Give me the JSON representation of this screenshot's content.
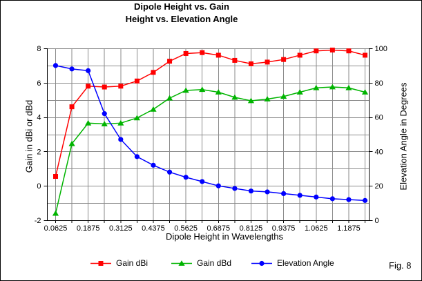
{
  "chart": {
    "title_line1": "Dipole Height vs. Gain",
    "title_line2": "Height vs. Elevation Angle",
    "x_axis_title": "Dipole Height in Wavelengths",
    "y_left_title": "Gain in dBi or dBd",
    "y_right_title": "Elevation Angle in Degrees",
    "fig_label": "Fig. 8"
  },
  "chart_data": {
    "type": "line",
    "title": "Dipole Height vs. Gain / Height vs. Elevation Angle",
    "xlabel": "Dipole Height in Wavelengths",
    "ylabel_left": "Gain in dBi or dBd",
    "ylabel_right": "Elevation Angle in Degrees",
    "grid": true,
    "grid_color": "#8a8a8a",
    "axis_color": "#000000",
    "legend_position": "bottom",
    "x": [
      0.0625,
      0.125,
      0.1875,
      0.25,
      0.3125,
      0.375,
      0.4375,
      0.5,
      0.5625,
      0.625,
      0.6875,
      0.75,
      0.8125,
      0.875,
      0.9375,
      1.0,
      1.0625,
      1.125,
      1.1875,
      1.25
    ],
    "x_tick_labels": [
      "0.0625",
      "0.1875",
      "0.3125",
      "0.4375",
      "0.5625",
      "0.6875",
      "0.8125",
      "0.9375",
      "1.0625",
      "1.1875"
    ],
    "y_left": {
      "min": -2,
      "max": 8,
      "minor_step": 1,
      "ticks": [
        8,
        6,
        4,
        2,
        0,
        -2
      ]
    },
    "y_right": {
      "min": 0,
      "max": 100,
      "minor_step": 10,
      "ticks": [
        100,
        80,
        60,
        40,
        20,
        0
      ]
    },
    "series": [
      {
        "name": "Gain dBi",
        "axis": "left",
        "color": "#ff0000",
        "marker": "square",
        "values": [
          0.55,
          4.6,
          5.8,
          5.75,
          5.8,
          6.1,
          6.6,
          7.25,
          7.7,
          7.75,
          7.6,
          7.3,
          7.1,
          7.2,
          7.35,
          7.6,
          7.85,
          7.9,
          7.85,
          7.6
        ]
      },
      {
        "name": "Gain dBd",
        "axis": "left",
        "color": "#00b400",
        "marker": "triangle",
        "values": [
          -1.6,
          2.45,
          3.65,
          3.6,
          3.65,
          3.95,
          4.45,
          5.1,
          5.55,
          5.6,
          5.45,
          5.15,
          4.95,
          5.05,
          5.2,
          5.45,
          5.7,
          5.75,
          5.7,
          5.45
        ]
      },
      {
        "name": "Elevation Angle",
        "axis": "right",
        "color": "#0000ff",
        "marker": "circle",
        "values": [
          90,
          88,
          87,
          62,
          47,
          37,
          32,
          28,
          25,
          22.5,
          20,
          18.5,
          17,
          16.5,
          15.5,
          14.5,
          13.5,
          12.5,
          12,
          11.5
        ]
      }
    ]
  }
}
